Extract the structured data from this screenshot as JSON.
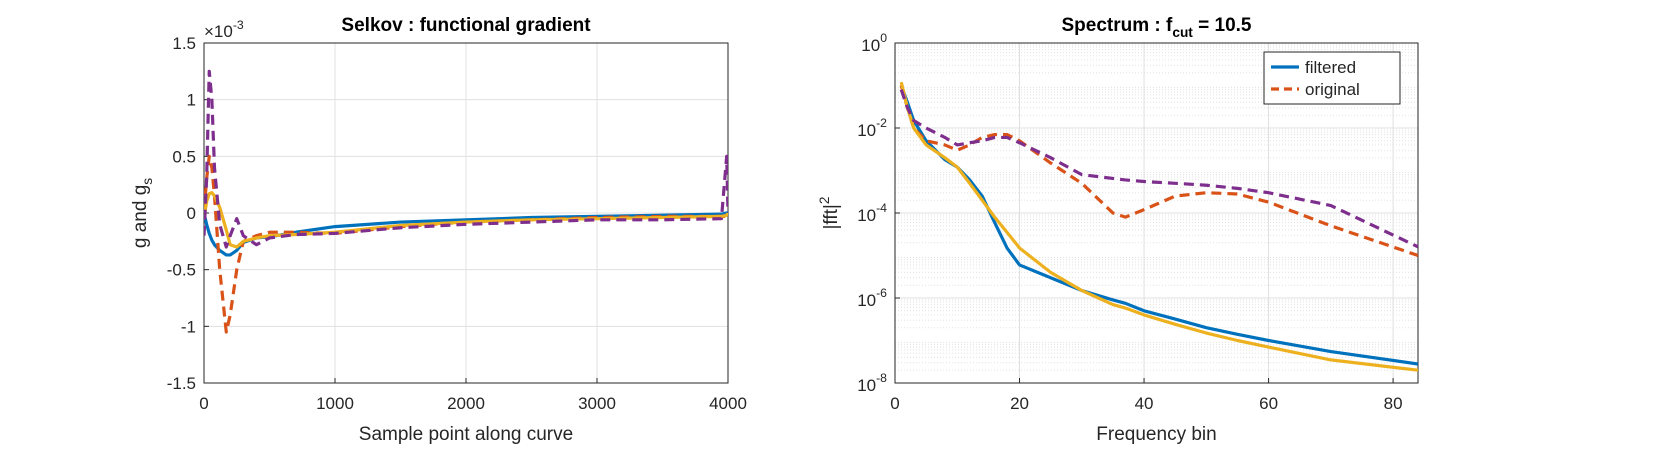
{
  "chart_data": [
    {
      "type": "line",
      "title": "Selkov : functional gradient",
      "xlabel": "Sample point along curve",
      "ylabel": "g and g",
      "ylabel_subscript": "s",
      "y_multiplier": "×10",
      "y_multiplier_exponent": "-3",
      "xlim": [
        0,
        4000
      ],
      "xticks": [
        0,
        1000,
        2000,
        3000,
        4000
      ],
      "ylim": [
        -1.5,
        1.5
      ],
      "yticks": [
        -1.5,
        -1,
        -0.5,
        0,
        0.5,
        1,
        1.5
      ],
      "grid": true,
      "x": [
        0,
        20,
        40,
        60,
        80,
        120,
        170,
        200,
        250,
        300,
        400,
        500,
        700,
        1000,
        1500,
        2000,
        2500,
        3000,
        3500,
        3950,
        3990,
        4000
      ],
      "series": [
        {
          "color": "#0072BD",
          "dash": false,
          "values": [
            0,
            -0.1,
            -0.18,
            -0.24,
            -0.28,
            -0.33,
            -0.37,
            -0.37,
            -0.33,
            -0.26,
            -0.22,
            -0.21,
            -0.17,
            -0.12,
            -0.08,
            -0.06,
            -0.04,
            -0.03,
            -0.02,
            -0.01,
            0,
            0
          ]
        },
        {
          "color": "#D95319",
          "dash": true,
          "values": [
            0,
            0.3,
            0.5,
            0.4,
            0.15,
            -0.5,
            -1.05,
            -0.9,
            -0.5,
            -0.25,
            -0.2,
            -0.17,
            -0.17,
            -0.18,
            -0.12,
            -0.08,
            -0.06,
            -0.04,
            -0.03,
            -0.03,
            -0.03,
            0
          ]
        },
        {
          "color": "#EDB120",
          "dash": false,
          "values": [
            -0.05,
            0.1,
            0.17,
            0.18,
            0.15,
            0.05,
            -0.15,
            -0.28,
            -0.3,
            -0.25,
            -0.22,
            -0.2,
            -0.19,
            -0.17,
            -0.11,
            -0.08,
            -0.06,
            -0.05,
            -0.04,
            -0.03,
            -0.02,
            0
          ]
        },
        {
          "color": "#7E2F8E",
          "dash": true,
          "values": [
            -0.2,
            0.3,
            1.25,
            1.0,
            0.4,
            -0.1,
            -0.3,
            -0.2,
            -0.05,
            -0.2,
            -0.28,
            -0.22,
            -0.19,
            -0.18,
            -0.13,
            -0.1,
            -0.08,
            -0.06,
            -0.06,
            -0.05,
            0.5,
            0
          ]
        }
      ]
    },
    {
      "type": "line",
      "title": "Spectrum : f",
      "title_subscript": "cut",
      "title_suffix": " = 10.5",
      "xlabel": "Frequency bin",
      "ylabel": "|fft|",
      "ylabel_superscript": "2",
      "xlim": [
        0,
        84
      ],
      "xticks": [
        0,
        20,
        40,
        60,
        80
      ],
      "ylog": true,
      "ylim": [
        1e-08,
        1
      ],
      "yticks": [
        {
          "value": 1e-08,
          "label": "10^-8"
        },
        {
          "value": 1e-06,
          "label": "10^-6"
        },
        {
          "value": 0.0001,
          "label": "10^-4"
        },
        {
          "value": 0.01,
          "label": "10^-2"
        },
        {
          "value": 1,
          "label": "10^0"
        }
      ],
      "grid": true,
      "minor_grid": true,
      "legend": "upper right",
      "x": [
        1,
        2,
        3,
        5,
        8,
        10,
        12,
        14,
        16,
        18,
        20,
        25,
        30,
        35,
        37,
        40,
        45,
        50,
        55,
        60,
        70,
        84
      ],
      "series": [
        {
          "name": "filtered",
          "color": "#0072BD",
          "dash": false,
          "values": [
            0.1,
            0.04,
            0.015,
            0.005,
            0.0018,
            0.0012,
            0.0006,
            0.00025,
            6e-05,
            1.5e-05,
            6e-06,
            3e-06,
            1.5e-06,
            9e-07,
            7.5e-07,
            5e-07,
            3.2e-07,
            2e-07,
            1.4e-07,
            1e-07,
            5.5e-08,
            2.8e-08
          ]
        },
        {
          "name": "original",
          "color": "#D95319",
          "dash": true,
          "values": [
            0.1,
            0.03,
            0.01,
            0.005,
            0.004,
            0.003,
            0.004,
            0.006,
            0.007,
            0.007,
            0.005,
            0.0015,
            0.0005,
            0.0001,
            8e-05,
            0.00012,
            0.00025,
            0.0003,
            0.00028,
            0.00018,
            5e-05,
            1e-05
          ]
        },
        {
          "color": "#EDB120",
          "dash": false,
          "values": [
            0.12,
            0.03,
            0.01,
            0.004,
            0.002,
            0.0012,
            0.0005,
            0.0002,
            8e-05,
            3.5e-05,
            1.5e-05,
            4e-06,
            1.5e-06,
            7e-07,
            5.8e-07,
            4e-07,
            2.4e-07,
            1.5e-07,
            1e-07,
            7e-08,
            3.5e-08,
            2e-08
          ]
        },
        {
          "color": "#7E2F8E",
          "dash": true,
          "values": [
            0.08,
            0.03,
            0.015,
            0.01,
            0.006,
            0.004,
            0.0045,
            0.005,
            0.006,
            0.006,
            0.0045,
            0.002,
            0.0008,
            0.00065,
            0.0006,
            0.00055,
            0.0005,
            0.00045,
            0.00038,
            0.0003,
            0.00015,
            1.6e-05
          ]
        }
      ]
    }
  ]
}
